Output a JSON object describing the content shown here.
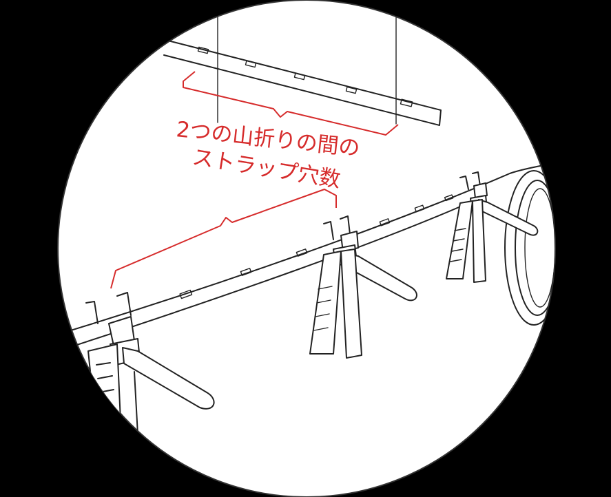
{
  "annotation": {
    "line1": "2つの山折りの間の",
    "line2": "ストラップ穴数"
  },
  "colors": {
    "background": "#000000",
    "circle_fill": "#ffffff",
    "ink": "#222222",
    "annotation": "#d62b2b"
  }
}
